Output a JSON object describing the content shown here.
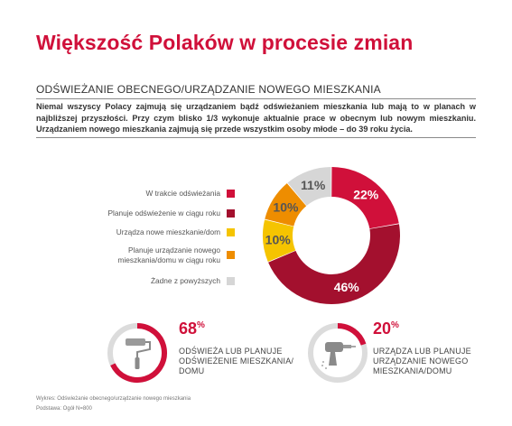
{
  "title": "Większość Polaków w procesie zmian",
  "subtitle": "ODŚWIEŻANIE OBECNEGO/URZĄDZANIE NOWEGO MIESZKANIA",
  "intro": "Niemal wszyscy Polacy zajmują się urządzaniem bądź odświeżaniem mieszkania lub mają to w planach w najbliższej przyszłości. Przy czym blisko 1/3 wykonuje aktualnie prace w obecnym lub nowym mieszkaniu. Urządzaniem nowego mieszkania zajmują się przede wszystkim osoby młode – do 39 roku życia.",
  "chart_data": {
    "type": "pie",
    "categories": [
      "W trakcie odświeżania",
      "Planuje odświeżenie w ciągu roku",
      "Urządza nowe mieszkanie/dom",
      "Planuje urządzanie nowego mieszkania/domu w ciągu roku",
      "Żadne z powyższych"
    ],
    "legend_lines": [
      [
        "W trakcie odświeżania"
      ],
      [
        "Planuje odświeżenie w ciągu roku"
      ],
      [
        "Urządza nowe mieszkanie/dom"
      ],
      [
        "Planuje urządzanie nowego",
        "mieszkania/domu w ciągu roku"
      ],
      [
        "Żadne z powyższych"
      ]
    ],
    "values": [
      22,
      46,
      10,
      10,
      11
    ],
    "value_labels": [
      "22%",
      "46%",
      "10%",
      "10%",
      "11%"
    ],
    "colors": [
      "#d0103a",
      "#a3102e",
      "#f5c400",
      "#ee8d00",
      "#d6d6d6"
    ],
    "label_colors": [
      "#ffffff",
      "#ffffff",
      "#555555",
      "#555555",
      "#555555"
    ],
    "legend_placement": "left",
    "donut": true
  },
  "stats": [
    {
      "value": 68,
      "number": "68",
      "unit": "%",
      "lines": [
        "ODŚWIEŻA LUB PLANUJE",
        "ODŚWIEŻENIE MIESZKANIA/",
        "DOMU"
      ],
      "icon": "paint-roller-icon",
      "color": "#d0103a"
    },
    {
      "value": 20,
      "number": "20",
      "unit": "%",
      "lines": [
        "URZĄDZA LUB PLANUJE",
        "URZĄDZANIE NOWEGO",
        "MIESZKANIA/DOMU"
      ],
      "icon": "power-drill-icon",
      "color": "#d0103a"
    }
  ],
  "footer": {
    "line1": "Wykres: Odświeżanie obecnego/urządzanie nowego mieszkania",
    "line2": "Podstawa: Ogół N=800"
  }
}
